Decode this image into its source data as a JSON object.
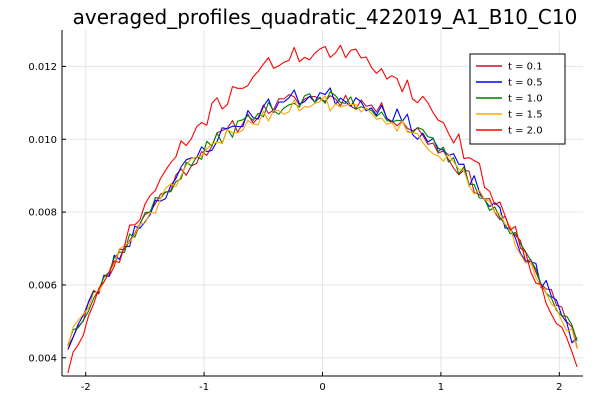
{
  "chart_data": {
    "type": "line",
    "title": "averaged_profiles_quadratic_422019_A1_B10_C10",
    "xlabel": "",
    "ylabel": "",
    "xlim": [
      -2.2,
      2.2
    ],
    "ylim": [
      0.0035,
      0.013
    ],
    "x_ticks": [
      -2,
      -1,
      0,
      1,
      2
    ],
    "x_tick_labels": [
      "-2",
      "-1",
      "0",
      "1",
      "2"
    ],
    "y_ticks": [
      0.004,
      0.006,
      0.008,
      0.01,
      0.012
    ],
    "y_tick_labels": [
      "0.004",
      "0.006",
      "0.008",
      "0.010",
      "0.012"
    ],
    "grid": true,
    "legend_position": "top-right",
    "x_range": [
      -2.15,
      2.15
    ],
    "n_points": 100,
    "series": [
      {
        "name": "t = 0.1",
        "color": "#c8102e",
        "peak": 0.01115,
        "edge": 0.0044,
        "noise": 0.00022,
        "seed": 11
      },
      {
        "name": "t = 0.5",
        "color": "#0000ff",
        "peak": 0.0112,
        "edge": 0.00435,
        "noise": 0.00025,
        "seed": 23
      },
      {
        "name": "t = 1.0",
        "color": "#008000",
        "peak": 0.0111,
        "edge": 0.00445,
        "noise": 0.00022,
        "seed": 37
      },
      {
        "name": "t = 1.5",
        "color": "#ffa500",
        "peak": 0.011,
        "edge": 0.0044,
        "noise": 0.00022,
        "seed": 51
      },
      {
        "name": "t = 2.0",
        "color": "#ff0000",
        "peak": 0.0124,
        "edge": 0.0037,
        "noise": 0.00025,
        "seed": 71
      }
    ]
  }
}
